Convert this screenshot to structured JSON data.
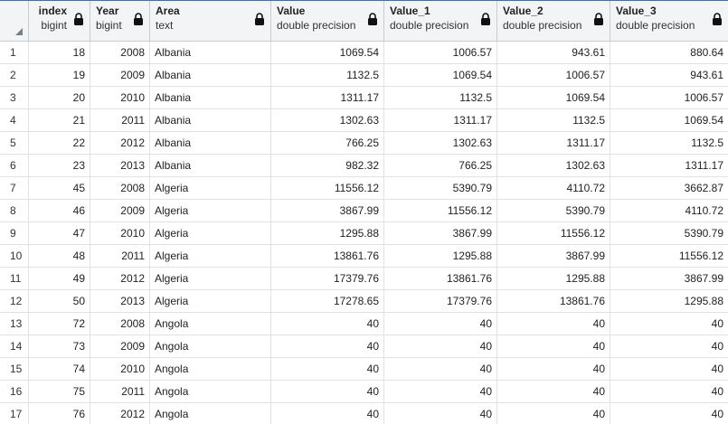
{
  "columns": [
    {
      "name": "index",
      "type": "bigint"
    },
    {
      "name": "Year",
      "type": "bigint"
    },
    {
      "name": "Area",
      "type": "text"
    },
    {
      "name": "Value",
      "type": "double precision"
    },
    {
      "name": "Value_1",
      "type": "double precision"
    },
    {
      "name": "Value_2",
      "type": "double precision"
    },
    {
      "name": "Value_3",
      "type": "double precision"
    }
  ],
  "rows": [
    {
      "num": "1",
      "index": "18",
      "year": "2008",
      "area": "Albania",
      "value": "1069.54",
      "value_1": "1006.57",
      "value_2": "943.61",
      "value_3": "880.64"
    },
    {
      "num": "2",
      "index": "19",
      "year": "2009",
      "area": "Albania",
      "value": "1132.5",
      "value_1": "1069.54",
      "value_2": "1006.57",
      "value_3": "943.61"
    },
    {
      "num": "3",
      "index": "20",
      "year": "2010",
      "area": "Albania",
      "value": "1311.17",
      "value_1": "1132.5",
      "value_2": "1069.54",
      "value_3": "1006.57"
    },
    {
      "num": "4",
      "index": "21",
      "year": "2011",
      "area": "Albania",
      "value": "1302.63",
      "value_1": "1311.17",
      "value_2": "1132.5",
      "value_3": "1069.54"
    },
    {
      "num": "5",
      "index": "22",
      "year": "2012",
      "area": "Albania",
      "value": "766.25",
      "value_1": "1302.63",
      "value_2": "1311.17",
      "value_3": "1132.5"
    },
    {
      "num": "6",
      "index": "23",
      "year": "2013",
      "area": "Albania",
      "value": "982.32",
      "value_1": "766.25",
      "value_2": "1302.63",
      "value_3": "1311.17"
    },
    {
      "num": "7",
      "index": "45",
      "year": "2008",
      "area": "Algeria",
      "value": "11556.12",
      "value_1": "5390.79",
      "value_2": "4110.72",
      "value_3": "3662.87"
    },
    {
      "num": "8",
      "index": "46",
      "year": "2009",
      "area": "Algeria",
      "value": "3867.99",
      "value_1": "11556.12",
      "value_2": "5390.79",
      "value_3": "4110.72"
    },
    {
      "num": "9",
      "index": "47",
      "year": "2010",
      "area": "Algeria",
      "value": "1295.88",
      "value_1": "3867.99",
      "value_2": "11556.12",
      "value_3": "5390.79"
    },
    {
      "num": "10",
      "index": "48",
      "year": "2011",
      "area": "Algeria",
      "value": "13861.76",
      "value_1": "1295.88",
      "value_2": "3867.99",
      "value_3": "11556.12"
    },
    {
      "num": "11",
      "index": "49",
      "year": "2012",
      "area": "Algeria",
      "value": "17379.76",
      "value_1": "13861.76",
      "value_2": "1295.88",
      "value_3": "3867.99"
    },
    {
      "num": "12",
      "index": "50",
      "year": "2013",
      "area": "Algeria",
      "value": "17278.65",
      "value_1": "17379.76",
      "value_2": "13861.76",
      "value_3": "1295.88"
    },
    {
      "num": "13",
      "index": "72",
      "year": "2008",
      "area": "Angola",
      "value": "40",
      "value_1": "40",
      "value_2": "40",
      "value_3": "40"
    },
    {
      "num": "14",
      "index": "73",
      "year": "2009",
      "area": "Angola",
      "value": "40",
      "value_1": "40",
      "value_2": "40",
      "value_3": "40"
    },
    {
      "num": "15",
      "index": "74",
      "year": "2010",
      "area": "Angola",
      "value": "40",
      "value_1": "40",
      "value_2": "40",
      "value_3": "40"
    },
    {
      "num": "16",
      "index": "75",
      "year": "2011",
      "area": "Angola",
      "value": "40",
      "value_1": "40",
      "value_2": "40",
      "value_3": "40"
    },
    {
      "num": "17",
      "index": "76",
      "year": "2012",
      "area": "Angola",
      "value": "40",
      "value_1": "40",
      "value_2": "40",
      "value_3": "40"
    }
  ],
  "icons": {
    "column_lock": "lock-icon",
    "select_all": "sort-corner-icon"
  },
  "colors": {
    "accent": "#2f6fd6",
    "header_bg": "#f3f4f6",
    "grid_line": "#dfe3e8"
  }
}
